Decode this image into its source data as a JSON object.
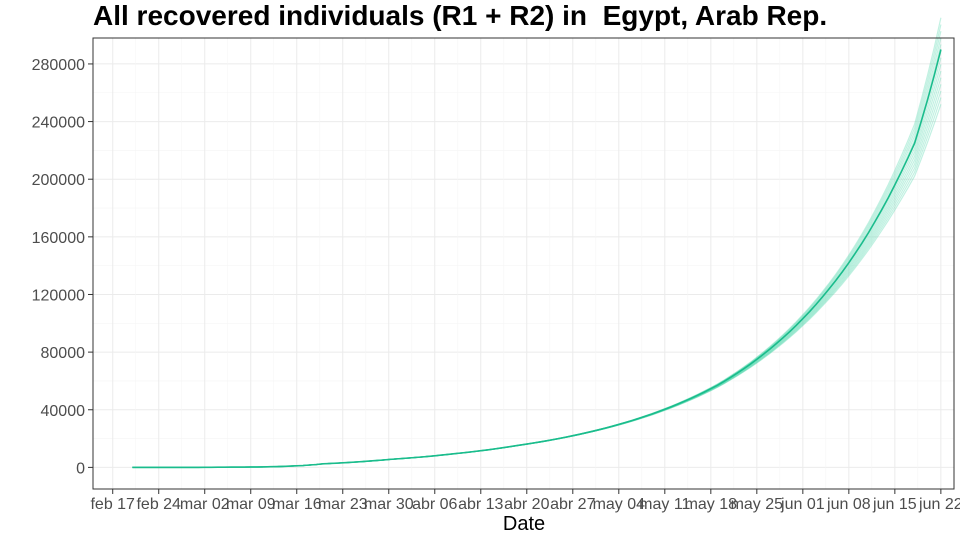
{
  "chart_data": {
    "type": "line",
    "title": "All recovered individuals (R1 + R2) in  Egypt, Arab Rep.",
    "xlabel": "Date",
    "ylabel": "",
    "x_ticks": [
      "feb 17",
      "feb 24",
      "mar 02",
      "mar 09",
      "mar 16",
      "mar 23",
      "mar 30",
      "abr 06",
      "abr 13",
      "abr 20",
      "abr 27",
      "may 04",
      "may 11",
      "may 18",
      "may 25",
      "jun 01",
      "jun 08",
      "jun 15",
      "jun 22"
    ],
    "y_ticks": [
      0,
      40000,
      80000,
      120000,
      160000,
      200000,
      240000,
      280000
    ],
    "xlim": [
      "2020-02-14",
      "2020-06-24"
    ],
    "ylim": [
      -15000,
      298000
    ],
    "grid": true,
    "colors": {
      "main_line": "#1abc8c",
      "ensemble": "#4fd6ad"
    },
    "series": [
      {
        "x": [
          "2020-02-20",
          "2020-03-01",
          "2020-03-10",
          "2020-03-20",
          "2020-03-30",
          "2020-04-09",
          "2020-04-19",
          "2020-04-29",
          "2020-05-09",
          "2020-05-19",
          "2020-05-29",
          "2020-06-08",
          "2020-06-18",
          "2020-06-22"
        ],
        "y": [
          0,
          0,
          300,
          2500,
          5500,
          9500,
          15500,
          24000,
          37000,
          57000,
          90000,
          142000,
          225000,
          290000
        ]
      }
    ],
    "ensemble_spread_at_end": [
      252000,
      312000
    ]
  }
}
